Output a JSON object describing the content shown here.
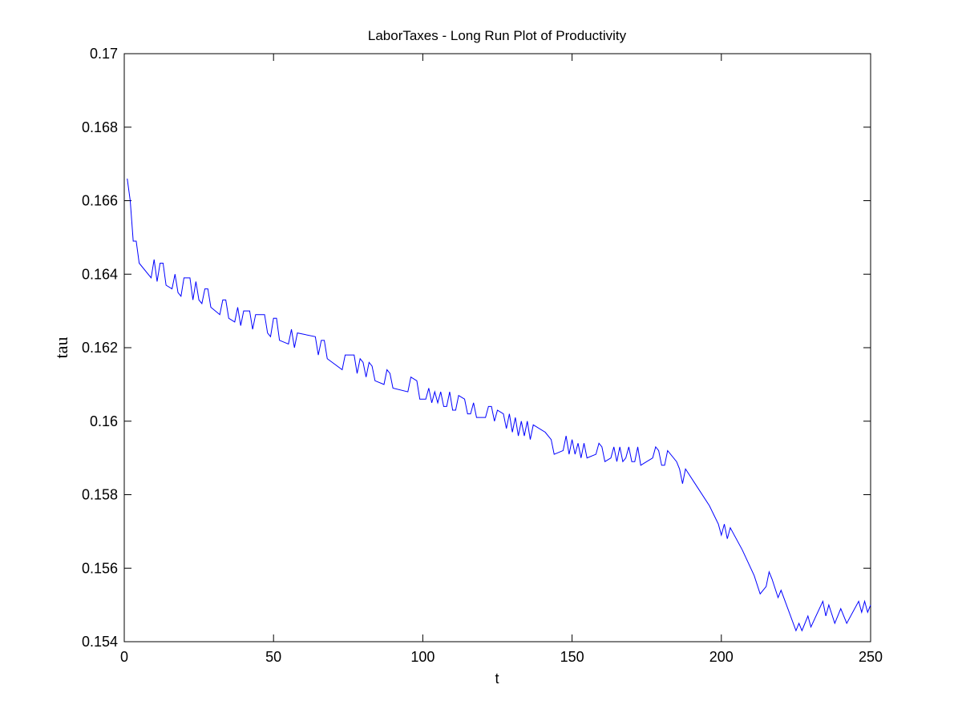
{
  "chart_data": {
    "type": "line",
    "title": "LaborTaxes - Long Run Plot of Productivity",
    "xlabel": "t",
    "ylabel": "tau",
    "xlim": [
      0,
      250
    ],
    "xticks": [
      0,
      50,
      100,
      150,
      200,
      250
    ],
    "ylim": [
      0.154,
      0.17
    ],
    "yticks": [
      0.154,
      0.156,
      0.158,
      0.16,
      0.162,
      0.164,
      0.166,
      0.168,
      0.17
    ],
    "grid": false,
    "series": [
      {
        "name": "tau",
        "color": "#0000ff",
        "x": [
          1,
          2,
          3,
          4,
          5,
          9,
          10,
          11,
          12,
          13,
          14,
          16,
          17,
          18,
          19,
          20,
          22,
          23,
          24,
          25,
          26,
          27,
          28,
          29,
          32,
          33,
          34,
          35,
          37,
          38,
          39,
          40,
          42,
          43,
          44,
          47,
          48,
          49,
          50,
          51,
          52,
          55,
          56,
          57,
          58,
          64,
          65,
          66,
          67,
          68,
          73,
          74,
          77,
          78,
          79,
          80,
          81,
          82,
          83,
          84,
          87,
          88,
          89,
          90,
          95,
          96,
          98,
          99,
          101,
          102,
          103,
          104,
          105,
          106,
          107,
          108,
          109,
          110,
          111,
          112,
          114,
          115,
          116,
          117,
          118,
          121,
          122,
          123,
          124,
          125,
          127,
          128,
          129,
          130,
          131,
          132,
          133,
          134,
          135,
          136,
          137,
          141,
          143,
          144,
          147,
          148,
          149,
          150,
          151,
          152,
          153,
          154,
          155,
          158,
          159,
          160,
          161,
          163,
          164,
          165,
          166,
          167,
          168,
          169,
          170,
          171,
          172,
          173,
          175,
          177,
          178,
          179,
          180,
          181,
          182,
          185,
          186,
          187,
          188,
          192,
          196,
          199,
          200,
          201,
          202,
          203,
          207,
          211,
          213,
          215,
          216,
          217,
          219,
          220,
          225,
          226,
          227,
          229,
          230,
          234,
          235,
          236,
          238,
          240,
          242,
          246,
          247,
          248,
          249,
          250
        ],
        "values": [
          0.1666,
          0.166,
          0.1649,
          0.1649,
          0.1643,
          0.1639,
          0.1644,
          0.1638,
          0.1643,
          0.1643,
          0.1637,
          0.1636,
          0.164,
          0.1635,
          0.1634,
          0.1639,
          0.1639,
          0.1633,
          0.1638,
          0.1633,
          0.1632,
          0.1636,
          0.1636,
          0.1631,
          0.1629,
          0.1633,
          0.1633,
          0.1628,
          0.1627,
          0.1631,
          0.1626,
          0.163,
          0.163,
          0.1625,
          0.1629,
          0.1629,
          0.1624,
          0.1623,
          0.1628,
          0.1628,
          0.1622,
          0.1621,
          0.1625,
          0.162,
          0.1624,
          0.1623,
          0.1618,
          0.1622,
          0.1622,
          0.1617,
          0.1614,
          0.1618,
          0.1618,
          0.1613,
          0.1617,
          0.1616,
          0.1612,
          0.1616,
          0.1615,
          0.1611,
          0.161,
          0.1614,
          0.1613,
          0.1609,
          0.1608,
          0.1612,
          0.1611,
          0.1606,
          0.1606,
          0.1609,
          0.1605,
          0.1608,
          0.1605,
          0.1608,
          0.1604,
          0.1604,
          0.1608,
          0.1603,
          0.1603,
          0.1607,
          0.1606,
          0.1602,
          0.1602,
          0.1605,
          0.1601,
          0.1601,
          0.1604,
          0.1604,
          0.16,
          0.1603,
          0.1602,
          0.1598,
          0.1602,
          0.1597,
          0.1601,
          0.1596,
          0.16,
          0.1596,
          0.16,
          0.1595,
          0.1599,
          0.1597,
          0.1595,
          0.1591,
          0.1592,
          0.1596,
          0.1591,
          0.1595,
          0.1591,
          0.1594,
          0.159,
          0.1594,
          0.159,
          0.1591,
          0.1594,
          0.1593,
          0.1589,
          0.159,
          0.1593,
          0.1589,
          0.1593,
          0.1589,
          0.159,
          0.1593,
          0.1589,
          0.1589,
          0.1593,
          0.1588,
          0.1589,
          0.159,
          0.1593,
          0.1592,
          0.1588,
          0.1588,
          0.1592,
          0.1589,
          0.1587,
          0.1583,
          0.1587,
          0.1582,
          0.1577,
          0.1572,
          0.1569,
          0.1572,
          0.1568,
          0.1571,
          0.1565,
          0.1558,
          0.1553,
          0.1555,
          0.1559,
          0.1557,
          0.1552,
          0.1554,
          0.1543,
          0.1545,
          0.1543,
          0.1547,
          0.1544,
          0.1551,
          0.1547,
          0.155,
          0.1545,
          0.1549,
          0.1545,
          0.1551,
          0.1548,
          0.1551,
          0.1548,
          0.155
        ]
      }
    ]
  }
}
